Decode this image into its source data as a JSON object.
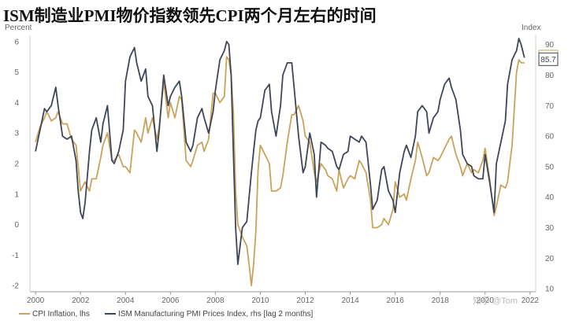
{
  "chart_data": {
    "type": "line",
    "title": "ISM制造业PMI物价指数领先CPI两个月左右的时间",
    "y_left_label": "Percent",
    "y_right_label": "Index",
    "x_ticks": [
      "2000",
      "2002",
      "2004",
      "2006",
      "2008",
      "2010",
      "2012",
      "2014",
      "2016",
      "2018",
      "2020",
      "2022"
    ],
    "y_left_ticks": [
      6,
      5,
      4,
      3,
      2,
      1,
      0,
      -1,
      -2
    ],
    "y_right_ticks": [
      90,
      80,
      70,
      60,
      50,
      40,
      30,
      20,
      10
    ],
    "ylim_left": [
      -2.2,
      6.2
    ],
    "ylim_right": [
      9,
      93
    ],
    "xlim": [
      1999.75,
      2022.25
    ],
    "grid": false,
    "legend_position": "bottom-left",
    "end_labels": {
      "cpi": "5.3",
      "ism": "85.7"
    },
    "watermark": "知乎 @Tom",
    "series": [
      {
        "name": "CPI Inflation, lhs",
        "axis": "left",
        "color": "#C9A35C",
        "points": [
          [
            2000.0,
            2.7
          ],
          [
            2000.2,
            3.2
          ],
          [
            2000.4,
            3.5
          ],
          [
            2000.5,
            3.7
          ],
          [
            2000.7,
            3.4
          ],
          [
            2000.9,
            3.5
          ],
          [
            2001.0,
            3.7
          ],
          [
            2001.2,
            3.3
          ],
          [
            2001.4,
            3.3
          ],
          [
            2001.6,
            2.8
          ],
          [
            2001.8,
            2.6
          ],
          [
            2001.9,
            1.9
          ],
          [
            2002.0,
            1.1
          ],
          [
            2002.2,
            1.4
          ],
          [
            2002.4,
            1.1
          ],
          [
            2002.5,
            1.5
          ],
          [
            2002.7,
            1.5
          ],
          [
            2002.9,
            2.2
          ],
          [
            2003.0,
            2.6
          ],
          [
            2003.2,
            3.0
          ],
          [
            2003.4,
            2.1
          ],
          [
            2003.5,
            2.1
          ],
          [
            2003.7,
            2.3
          ],
          [
            2003.9,
            1.9
          ],
          [
            2004.0,
            1.9
          ],
          [
            2004.2,
            1.7
          ],
          [
            2004.4,
            3.1
          ],
          [
            2004.5,
            3.0
          ],
          [
            2004.7,
            2.7
          ],
          [
            2004.9,
            3.5
          ],
          [
            2005.0,
            3.0
          ],
          [
            2005.2,
            3.5
          ],
          [
            2005.4,
            2.8
          ],
          [
            2005.5,
            3.2
          ],
          [
            2005.7,
            4.7
          ],
          [
            2005.9,
            3.5
          ],
          [
            2006.0,
            4.0
          ],
          [
            2006.2,
            3.5
          ],
          [
            2006.4,
            4.2
          ],
          [
            2006.5,
            4.1
          ],
          [
            2006.7,
            2.1
          ],
          [
            2006.9,
            1.9
          ],
          [
            2007.0,
            2.1
          ],
          [
            2007.2,
            2.6
          ],
          [
            2007.4,
            2.7
          ],
          [
            2007.5,
            2.4
          ],
          [
            2007.7,
            2.8
          ],
          [
            2007.9,
            4.3
          ],
          [
            2008.0,
            4.3
          ],
          [
            2008.2,
            4.0
          ],
          [
            2008.4,
            4.2
          ],
          [
            2008.5,
            5.5
          ],
          [
            2008.6,
            5.4
          ],
          [
            2008.7,
            4.9
          ],
          [
            2008.8,
            3.7
          ],
          [
            2008.9,
            1.1
          ],
          [
            2009.0,
            0.0
          ],
          [
            2009.2,
            -0.4
          ],
          [
            2009.4,
            -0.7
          ],
          [
            2009.5,
            -1.3
          ],
          [
            2009.6,
            -2.0
          ],
          [
            2009.7,
            -1.3
          ],
          [
            2009.8,
            -0.2
          ],
          [
            2009.9,
            1.8
          ],
          [
            2010.0,
            2.6
          ],
          [
            2010.2,
            2.3
          ],
          [
            2010.4,
            2.0
          ],
          [
            2010.5,
            1.1
          ],
          [
            2010.7,
            1.1
          ],
          [
            2010.9,
            1.2
          ],
          [
            2011.0,
            1.6
          ],
          [
            2011.2,
            2.7
          ],
          [
            2011.4,
            3.6
          ],
          [
            2011.5,
            3.6
          ],
          [
            2011.7,
            3.9
          ],
          [
            2011.9,
            3.4
          ],
          [
            2012.0,
            2.9
          ],
          [
            2012.2,
            2.7
          ],
          [
            2012.4,
            1.7
          ],
          [
            2012.5,
            1.4
          ],
          [
            2012.7,
            2.0
          ],
          [
            2012.9,
            1.8
          ],
          [
            2013.0,
            1.6
          ],
          [
            2013.2,
            1.5
          ],
          [
            2013.4,
            1.1
          ],
          [
            2013.5,
            1.8
          ],
          [
            2013.7,
            1.2
          ],
          [
            2013.9,
            1.5
          ],
          [
            2014.0,
            1.6
          ],
          [
            2014.2,
            1.5
          ],
          [
            2014.4,
            2.1
          ],
          [
            2014.5,
            2.0
          ],
          [
            2014.7,
            1.7
          ],
          [
            2014.9,
            0.8
          ],
          [
            2015.0,
            -0.1
          ],
          [
            2015.2,
            -0.1
          ],
          [
            2015.4,
            0.0
          ],
          [
            2015.5,
            0.2
          ],
          [
            2015.7,
            0.0
          ],
          [
            2015.9,
            0.5
          ],
          [
            2016.0,
            1.4
          ],
          [
            2016.2,
            0.9
          ],
          [
            2016.4,
            1.0
          ],
          [
            2016.5,
            0.8
          ],
          [
            2016.7,
            1.5
          ],
          [
            2016.9,
            2.1
          ],
          [
            2017.0,
            2.7
          ],
          [
            2017.2,
            2.2
          ],
          [
            2017.4,
            1.6
          ],
          [
            2017.5,
            1.7
          ],
          [
            2017.7,
            2.2
          ],
          [
            2017.9,
            2.1
          ],
          [
            2018.0,
            2.2
          ],
          [
            2018.2,
            2.5
          ],
          [
            2018.4,
            2.8
          ],
          [
            2018.5,
            2.9
          ],
          [
            2018.7,
            2.3
          ],
          [
            2018.9,
            1.9
          ],
          [
            2019.0,
            1.6
          ],
          [
            2019.2,
            2.0
          ],
          [
            2019.4,
            1.7
          ],
          [
            2019.5,
            1.8
          ],
          [
            2019.7,
            1.7
          ],
          [
            2019.9,
            2.1
          ],
          [
            2020.0,
            2.5
          ],
          [
            2020.2,
            1.5
          ],
          [
            2020.4,
            0.3
          ],
          [
            2020.5,
            0.6
          ],
          [
            2020.7,
            1.3
          ],
          [
            2020.9,
            1.2
          ],
          [
            2021.0,
            1.4
          ],
          [
            2021.2,
            2.6
          ],
          [
            2021.4,
            5.0
          ],
          [
            2021.5,
            5.4
          ],
          [
            2021.6,
            5.3
          ],
          [
            2021.75,
            5.3
          ]
        ]
      },
      {
        "name": "ISM Manufacturing PMI Prices Index, rhs [lag 2 months]",
        "axis": "right",
        "color": "#3E4656",
        "points": [
          [
            2000.0,
            55
          ],
          [
            2000.2,
            62
          ],
          [
            2000.4,
            69
          ],
          [
            2000.5,
            68
          ],
          [
            2000.7,
            70
          ],
          [
            2000.9,
            76
          ],
          [
            2001.0,
            70
          ],
          [
            2001.2,
            60
          ],
          [
            2001.4,
            59
          ],
          [
            2001.6,
            60
          ],
          [
            2001.8,
            52
          ],
          [
            2001.9,
            42
          ],
          [
            2002.0,
            35
          ],
          [
            2002.1,
            33
          ],
          [
            2002.2,
            38
          ],
          [
            2002.4,
            55
          ],
          [
            2002.5,
            62
          ],
          [
            2002.7,
            66
          ],
          [
            2002.9,
            58
          ],
          [
            2003.0,
            64
          ],
          [
            2003.2,
            70
          ],
          [
            2003.4,
            52
          ],
          [
            2003.5,
            51
          ],
          [
            2003.7,
            55
          ],
          [
            2003.9,
            62
          ],
          [
            2004.0,
            78
          ],
          [
            2004.2,
            86
          ],
          [
            2004.4,
            89
          ],
          [
            2004.5,
            84
          ],
          [
            2004.7,
            78
          ],
          [
            2004.9,
            82
          ],
          [
            2005.0,
            73
          ],
          [
            2005.2,
            70
          ],
          [
            2005.4,
            55
          ],
          [
            2005.5,
            62
          ],
          [
            2005.7,
            80
          ],
          [
            2005.9,
            70
          ],
          [
            2006.0,
            73
          ],
          [
            2006.2,
            76
          ],
          [
            2006.4,
            78
          ],
          [
            2006.5,
            73
          ],
          [
            2006.7,
            58
          ],
          [
            2006.9,
            55
          ],
          [
            2007.0,
            57
          ],
          [
            2007.2,
            66
          ],
          [
            2007.4,
            69
          ],
          [
            2007.5,
            66
          ],
          [
            2007.7,
            61
          ],
          [
            2007.9,
            68
          ],
          [
            2008.0,
            75
          ],
          [
            2008.2,
            85
          ],
          [
            2008.4,
            88
          ],
          [
            2008.5,
            91
          ],
          [
            2008.6,
            90
          ],
          [
            2008.7,
            80
          ],
          [
            2008.8,
            55
          ],
          [
            2008.9,
            30
          ],
          [
            2009.0,
            18
          ],
          [
            2009.2,
            30
          ],
          [
            2009.4,
            32
          ],
          [
            2009.5,
            40
          ],
          [
            2009.6,
            48
          ],
          [
            2009.7,
            55
          ],
          [
            2009.8,
            62
          ],
          [
            2009.9,
            65
          ],
          [
            2010.0,
            66
          ],
          [
            2010.2,
            75
          ],
          [
            2010.4,
            77
          ],
          [
            2010.5,
            68
          ],
          [
            2010.7,
            60
          ],
          [
            2010.9,
            70
          ],
          [
            2011.0,
            80
          ],
          [
            2011.2,
            84
          ],
          [
            2011.4,
            84
          ],
          [
            2011.5,
            76
          ],
          [
            2011.7,
            60
          ],
          [
            2011.9,
            48
          ],
          [
            2012.0,
            50
          ],
          [
            2012.2,
            61
          ],
          [
            2012.4,
            54
          ],
          [
            2012.5,
            40
          ],
          [
            2012.7,
            58
          ],
          [
            2012.9,
            57
          ],
          [
            2013.0,
            56
          ],
          [
            2013.2,
            55
          ],
          [
            2013.4,
            50
          ],
          [
            2013.5,
            49
          ],
          [
            2013.7,
            54
          ],
          [
            2013.9,
            55
          ],
          [
            2014.0,
            60
          ],
          [
            2014.2,
            59
          ],
          [
            2014.4,
            58
          ],
          [
            2014.5,
            60
          ],
          [
            2014.7,
            58
          ],
          [
            2014.9,
            44
          ],
          [
            2015.0,
            36
          ],
          [
            2015.2,
            39
          ],
          [
            2015.4,
            49
          ],
          [
            2015.5,
            50
          ],
          [
            2015.7,
            42
          ],
          [
            2015.9,
            39
          ],
          [
            2016.0,
            35
          ],
          [
            2016.2,
            48
          ],
          [
            2016.4,
            55
          ],
          [
            2016.5,
            57
          ],
          [
            2016.7,
            53
          ],
          [
            2016.9,
            60
          ],
          [
            2017.0,
            68
          ],
          [
            2017.2,
            70
          ],
          [
            2017.4,
            68
          ],
          [
            2017.5,
            61
          ],
          [
            2017.7,
            66
          ],
          [
            2017.9,
            68
          ],
          [
            2018.0,
            72
          ],
          [
            2018.2,
            77
          ],
          [
            2018.4,
            79
          ],
          [
            2018.5,
            76
          ],
          [
            2018.7,
            72
          ],
          [
            2018.9,
            62
          ],
          [
            2019.0,
            54
          ],
          [
            2019.2,
            51
          ],
          [
            2019.4,
            50
          ],
          [
            2019.5,
            47
          ],
          [
            2019.7,
            46
          ],
          [
            2019.9,
            46
          ],
          [
            2020.0,
            54
          ],
          [
            2020.2,
            45
          ],
          [
            2020.4,
            35
          ],
          [
            2020.5,
            51
          ],
          [
            2020.7,
            58
          ],
          [
            2020.9,
            65
          ],
          [
            2021.0,
            77
          ],
          [
            2021.2,
            85
          ],
          [
            2021.4,
            88
          ],
          [
            2021.5,
            92
          ],
          [
            2021.6,
            90
          ],
          [
            2021.75,
            85.7
          ]
        ]
      }
    ]
  }
}
